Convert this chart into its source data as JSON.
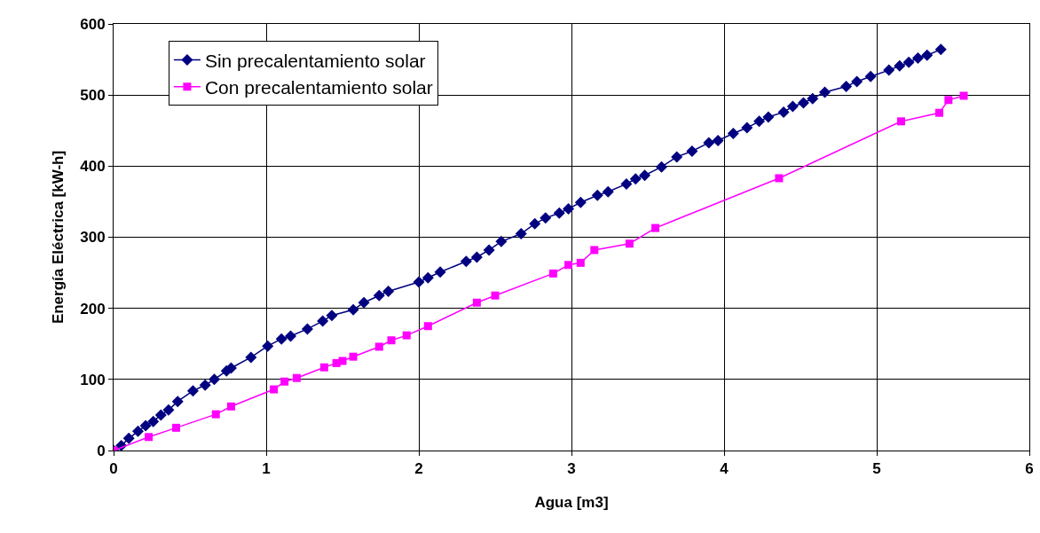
{
  "chart_data": {
    "type": "line",
    "xlabel": "Agua [m3]",
    "ylabel": "Energía Eléctrica [kW-h]",
    "xlim": [
      0,
      6
    ],
    "xticks": [
      0,
      1,
      2,
      3,
      4,
      5,
      6
    ],
    "ylim": [
      0,
      600
    ],
    "yticks": [
      0,
      100,
      200,
      300,
      400,
      500,
      600
    ],
    "grid": true,
    "legend": "top left",
    "line_style": "solid",
    "series": [
      {
        "name": "Sin precalentamiento solar",
        "color": "#000080",
        "marker": "diamond",
        "x": [
          0,
          0.05,
          0.1,
          0.16,
          0.21,
          0.26,
          0.31,
          0.36,
          0.42,
          0.52,
          0.6,
          0.66,
          0.74,
          0.77,
          0.9,
          1.01,
          1.1,
          1.16,
          1.27,
          1.37,
          1.43,
          1.57,
          1.64,
          1.74,
          1.8,
          2.0,
          2.06,
          2.14,
          2.31,
          2.38,
          2.46,
          2.54,
          2.67,
          2.76,
          2.83,
          2.92,
          2.98,
          3.06,
          3.17,
          3.24,
          3.36,
          3.42,
          3.48,
          3.59,
          3.69,
          3.79,
          3.9,
          3.96,
          4.06,
          4.15,
          4.23,
          4.29,
          4.39,
          4.45,
          4.52,
          4.58,
          4.66,
          4.8,
          4.87,
          4.96,
          5.08,
          5.15,
          5.21,
          5.27,
          5.33,
          5.42
        ],
        "values": [
          0,
          7,
          17,
          27,
          35,
          41,
          50,
          57,
          69,
          84,
          92,
          100,
          112,
          116,
          131,
          147,
          157,
          161,
          171,
          182,
          190,
          198,
          208,
          218,
          224,
          237,
          243,
          251,
          266,
          272,
          282,
          294,
          305,
          319,
          327,
          334,
          340,
          349,
          359,
          364,
          375,
          382,
          387,
          399,
          413,
          421,
          433,
          436,
          446,
          454,
          463,
          469,
          476,
          484,
          489,
          495,
          504,
          512,
          519,
          526,
          535,
          541,
          546,
          552,
          556,
          564
        ]
      },
      {
        "name": "Con precalentamiento solar",
        "color": "#ff00ff",
        "marker": "square",
        "x": [
          0,
          0.23,
          0.41,
          0.67,
          0.77,
          1.05,
          1.12,
          1.2,
          1.38,
          1.46,
          1.5,
          1.57,
          1.74,
          1.82,
          1.92,
          2.06,
          2.38,
          2.5,
          2.88,
          2.98,
          3.06,
          3.15,
          3.38,
          3.55,
          4.36,
          5.16,
          5.41,
          5.47,
          5.57
        ],
        "values": [
          0,
          19,
          32,
          51,
          62,
          86,
          97,
          102,
          117,
          123,
          126,
          132,
          146,
          155,
          162,
          175,
          208,
          218,
          249,
          261,
          264,
          282,
          291,
          313,
          383,
          463,
          475,
          493,
          499
        ]
      }
    ]
  }
}
